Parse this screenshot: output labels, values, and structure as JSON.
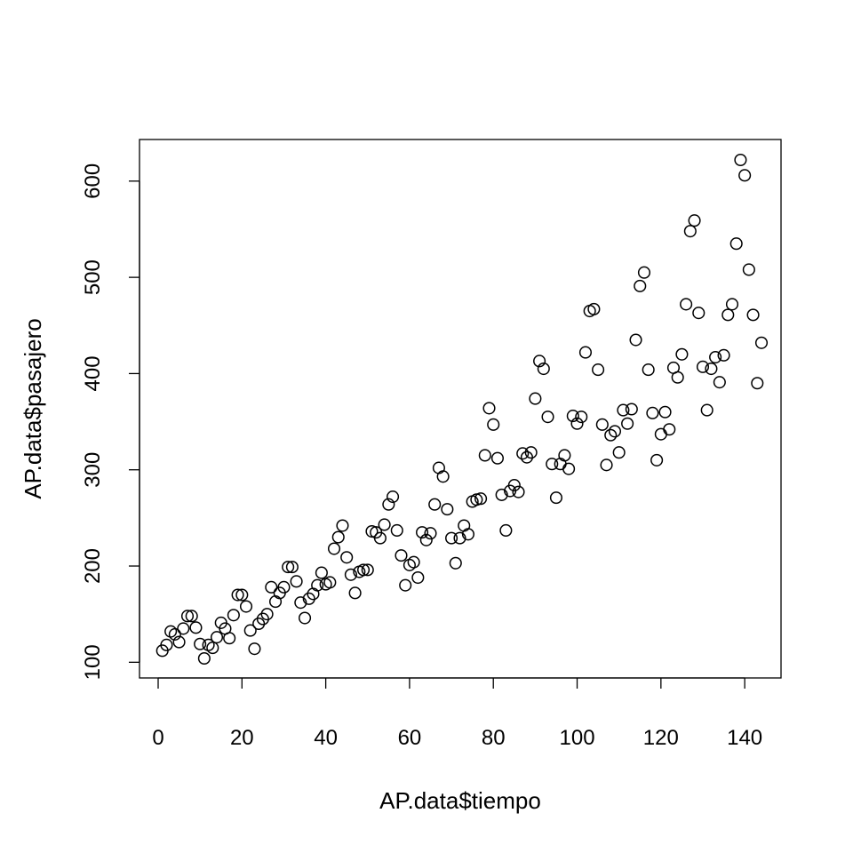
{
  "chart_data": {
    "type": "scatter",
    "title": "",
    "xlabel": "AP.data$tiempo",
    "ylabel": "AP.data$pasajero",
    "xlim": [
      0,
      144
    ],
    "ylim": [
      104,
      622
    ],
    "x_ticks": [
      0,
      20,
      40,
      60,
      80,
      100,
      120,
      140
    ],
    "y_ticks": [
      100,
      200,
      300,
      400,
      500,
      600
    ],
    "x_tick_labels": [
      "0",
      "20",
      "40",
      "60",
      "80",
      "100",
      "120",
      "140"
    ],
    "y_tick_labels": [
      "100",
      "200",
      "300",
      "400",
      "500",
      "600"
    ],
    "grid": false,
    "legend": "none",
    "marker": "open-circle",
    "x": [
      1,
      2,
      3,
      4,
      5,
      6,
      7,
      8,
      9,
      10,
      11,
      12,
      13,
      14,
      15,
      16,
      17,
      18,
      19,
      20,
      21,
      22,
      23,
      24,
      25,
      26,
      27,
      28,
      29,
      30,
      31,
      32,
      33,
      34,
      35,
      36,
      37,
      38,
      39,
      40,
      41,
      42,
      43,
      44,
      45,
      46,
      47,
      48,
      49,
      50,
      51,
      52,
      53,
      54,
      55,
      56,
      57,
      58,
      59,
      60,
      61,
      62,
      63,
      64,
      65,
      66,
      67,
      68,
      69,
      70,
      71,
      72,
      73,
      74,
      75,
      76,
      77,
      78,
      79,
      80,
      81,
      82,
      83,
      84,
      85,
      86,
      87,
      88,
      89,
      90,
      91,
      92,
      93,
      94,
      95,
      96,
      97,
      98,
      99,
      100,
      101,
      102,
      103,
      104,
      105,
      106,
      107,
      108,
      109,
      110,
      111,
      112,
      113,
      114,
      115,
      116,
      117,
      118,
      119,
      120,
      121,
      122,
      123,
      124,
      125,
      126,
      127,
      128,
      129,
      130,
      131,
      132,
      133,
      134,
      135,
      136,
      137,
      138,
      139,
      140,
      141,
      142,
      143,
      144
    ],
    "y": [
      112,
      118,
      132,
      129,
      121,
      135,
      148,
      148,
      136,
      119,
      104,
      118,
      115,
      126,
      141,
      135,
      125,
      149,
      170,
      170,
      158,
      133,
      114,
      140,
      145,
      150,
      178,
      163,
      172,
      178,
      199,
      199,
      184,
      162,
      146,
      166,
      171,
      180,
      193,
      181,
      183,
      218,
      230,
      242,
      209,
      191,
      172,
      194,
      196,
      196,
      236,
      235,
      229,
      243,
      264,
      272,
      237,
      211,
      180,
      201,
      204,
      188,
      235,
      227,
      234,
      264,
      302,
      293,
      259,
      229,
      203,
      229,
      242,
      233,
      267,
      269,
      270,
      315,
      364,
      347,
      312,
      274,
      237,
      278,
      284,
      277,
      317,
      313,
      318,
      374,
      413,
      405,
      355,
      306,
      271,
      306,
      315,
      301,
      356,
      348,
      355,
      422,
      465,
      467,
      404,
      347,
      305,
      336,
      340,
      318,
      362,
      348,
      363,
      435,
      491,
      505,
      404,
      359,
      310,
      337,
      360,
      342,
      406,
      396,
      420,
      472,
      548,
      559,
      463,
      407,
      362,
      405,
      417,
      391,
      419,
      461,
      472,
      535,
      622,
      606,
      508,
      461,
      390,
      432
    ]
  }
}
